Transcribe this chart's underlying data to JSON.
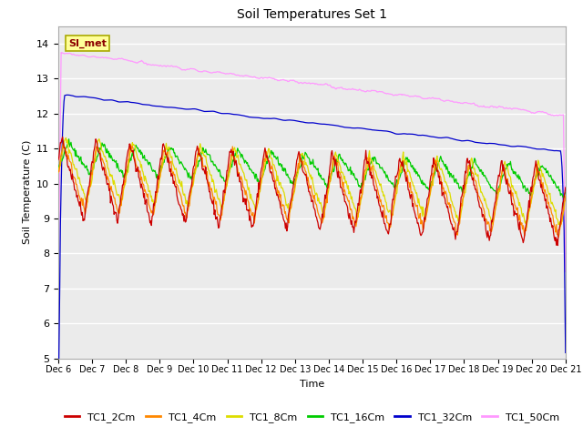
{
  "title": "Soil Temperatures Set 1",
  "xlabel": "Time",
  "ylabel": "Soil Temperature (C)",
  "ylim": [
    5.0,
    14.5
  ],
  "yticks": [
    5.0,
    6.0,
    7.0,
    8.0,
    9.0,
    10.0,
    11.0,
    12.0,
    13.0,
    14.0
  ],
  "colors": {
    "TC1_2Cm": "#cc0000",
    "TC1_4Cm": "#ff8800",
    "TC1_8Cm": "#dddd00",
    "TC1_16Cm": "#00cc00",
    "TC1_32Cm": "#0000cc",
    "TC1_50Cm": "#ff99ff"
  },
  "legend_label": "SI_met",
  "plot_bg": "#ebebeb",
  "start_day": 6,
  "end_day": 21
}
